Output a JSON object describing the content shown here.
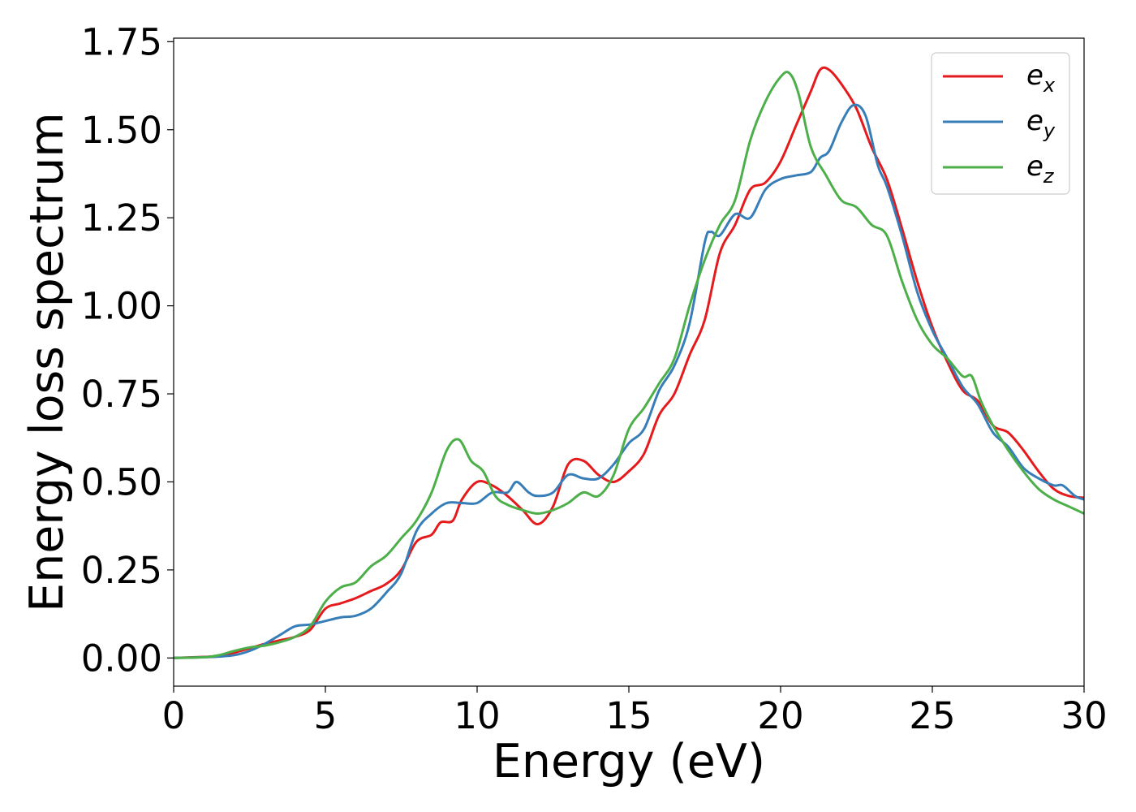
{
  "chart_data": {
    "type": "line",
    "xlabel": "Energy (eV)",
    "ylabel": "Energy loss spectrum",
    "xlim": [
      0,
      30
    ],
    "ylim": [
      -0.08,
      1.76
    ],
    "xticks": [
      0,
      5,
      10,
      15,
      20,
      25,
      30
    ],
    "xtick_labels": [
      "0",
      "5",
      "10",
      "15",
      "20",
      "25",
      "30"
    ],
    "yticks": [
      0.0,
      0.25,
      0.5,
      0.75,
      1.0,
      1.25,
      1.5,
      1.75
    ],
    "ytick_labels": [
      "0.00",
      "0.25",
      "0.50",
      "0.75",
      "1.00",
      "1.25",
      "1.50",
      "1.75"
    ],
    "grid": false,
    "legend_position": "top-right",
    "series": [
      {
        "name": "e_x",
        "label_base": "e",
        "label_sub": "x",
        "color": "#e41a1c",
        "points": [
          [
            0,
            0
          ],
          [
            1,
            0.003
          ],
          [
            1.5,
            0.006
          ],
          [
            2,
            0.015
          ],
          [
            3,
            0.04
          ],
          [
            3.5,
            0.05
          ],
          [
            4,
            0.06
          ],
          [
            4.5,
            0.08
          ],
          [
            5,
            0.14
          ],
          [
            5.5,
            0.155
          ],
          [
            6,
            0.17
          ],
          [
            6.5,
            0.19
          ],
          [
            7,
            0.21
          ],
          [
            7.5,
            0.25
          ],
          [
            8,
            0.33
          ],
          [
            8.5,
            0.35
          ],
          [
            8.8,
            0.385
          ],
          [
            9.2,
            0.39
          ],
          [
            9.5,
            0.45
          ],
          [
            10,
            0.5
          ],
          [
            10.5,
            0.49
          ],
          [
            11,
            0.46
          ],
          [
            11.5,
            0.42
          ],
          [
            12,
            0.38
          ],
          [
            12.5,
            0.43
          ],
          [
            13,
            0.55
          ],
          [
            13.5,
            0.56
          ],
          [
            14,
            0.52
          ],
          [
            14.5,
            0.5
          ],
          [
            15,
            0.53
          ],
          [
            15.5,
            0.58
          ],
          [
            16,
            0.69
          ],
          [
            16.5,
            0.75
          ],
          [
            17,
            0.86
          ],
          [
            17.5,
            0.96
          ],
          [
            18,
            1.15
          ],
          [
            18.5,
            1.23
          ],
          [
            19,
            1.33
          ],
          [
            19.5,
            1.35
          ],
          [
            20,
            1.41
          ],
          [
            20.5,
            1.51
          ],
          [
            21,
            1.61
          ],
          [
            21.3,
            1.67
          ],
          [
            21.6,
            1.67
          ],
          [
            22,
            1.63
          ],
          [
            22.5,
            1.56
          ],
          [
            23,
            1.45
          ],
          [
            23.5,
            1.36
          ],
          [
            24,
            1.22
          ],
          [
            24.5,
            1.07
          ],
          [
            25,
            0.94
          ],
          [
            25.5,
            0.84
          ],
          [
            26,
            0.76
          ],
          [
            26.5,
            0.73
          ],
          [
            27,
            0.66
          ],
          [
            27.5,
            0.64
          ],
          [
            28,
            0.59
          ],
          [
            28.5,
            0.53
          ],
          [
            29,
            0.48
          ],
          [
            29.5,
            0.46
          ],
          [
            30,
            0.455
          ]
        ]
      },
      {
        "name": "e_y",
        "label_base": "e",
        "label_sub": "y",
        "color": "#377eb8",
        "points": [
          [
            0,
            0
          ],
          [
            1,
            0.002
          ],
          [
            1.5,
            0.004
          ],
          [
            2,
            0.008
          ],
          [
            2.5,
            0.02
          ],
          [
            3,
            0.04
          ],
          [
            3.5,
            0.065
          ],
          [
            4,
            0.09
          ],
          [
            4.5,
            0.095
          ],
          [
            5,
            0.105
          ],
          [
            5.5,
            0.115
          ],
          [
            6,
            0.12
          ],
          [
            6.5,
            0.14
          ],
          [
            7,
            0.185
          ],
          [
            7.5,
            0.24
          ],
          [
            8,
            0.36
          ],
          [
            8.5,
            0.41
          ],
          [
            9,
            0.44
          ],
          [
            9.5,
            0.44
          ],
          [
            10,
            0.44
          ],
          [
            10.5,
            0.47
          ],
          [
            11,
            0.47
          ],
          [
            11.3,
            0.5
          ],
          [
            11.7,
            0.47
          ],
          [
            12,
            0.46
          ],
          [
            12.5,
            0.47
          ],
          [
            13,
            0.52
          ],
          [
            13.5,
            0.51
          ],
          [
            14,
            0.51
          ],
          [
            14.5,
            0.55
          ],
          [
            15,
            0.61
          ],
          [
            15.5,
            0.65
          ],
          [
            16,
            0.76
          ],
          [
            16.5,
            0.83
          ],
          [
            17,
            0.95
          ],
          [
            17.5,
            1.18
          ],
          [
            17.7,
            1.21
          ],
          [
            18,
            1.2
          ],
          [
            18.5,
            1.26
          ],
          [
            19,
            1.25
          ],
          [
            19.5,
            1.33
          ],
          [
            20,
            1.36
          ],
          [
            20.5,
            1.37
          ],
          [
            21,
            1.38
          ],
          [
            21.3,
            1.42
          ],
          [
            21.6,
            1.44
          ],
          [
            22,
            1.52
          ],
          [
            22.4,
            1.57
          ],
          [
            22.8,
            1.54
          ],
          [
            23.2,
            1.4
          ],
          [
            23.5,
            1.34
          ],
          [
            24,
            1.2
          ],
          [
            24.5,
            1.04
          ],
          [
            25,
            0.93
          ],
          [
            25.5,
            0.85
          ],
          [
            26,
            0.77
          ],
          [
            26.5,
            0.72
          ],
          [
            27,
            0.64
          ],
          [
            27.5,
            0.6
          ],
          [
            28,
            0.54
          ],
          [
            28.5,
            0.51
          ],
          [
            29,
            0.49
          ],
          [
            29.3,
            0.49
          ],
          [
            29.7,
            0.46
          ],
          [
            30,
            0.45
          ]
        ]
      },
      {
        "name": "e_z",
        "label_base": "e",
        "label_sub": "z",
        "color": "#4daf4a",
        "points": [
          [
            0,
            0
          ],
          [
            1,
            0.002
          ],
          [
            1.5,
            0.008
          ],
          [
            2,
            0.02
          ],
          [
            2.5,
            0.03
          ],
          [
            3,
            0.035
          ],
          [
            3.5,
            0.045
          ],
          [
            4,
            0.06
          ],
          [
            4.5,
            0.09
          ],
          [
            5,
            0.16
          ],
          [
            5.5,
            0.2
          ],
          [
            6,
            0.215
          ],
          [
            6.5,
            0.26
          ],
          [
            7,
            0.29
          ],
          [
            7.5,
            0.34
          ],
          [
            8,
            0.39
          ],
          [
            8.5,
            0.47
          ],
          [
            9,
            0.59
          ],
          [
            9.4,
            0.62
          ],
          [
            9.8,
            0.56
          ],
          [
            10.2,
            0.53
          ],
          [
            10.6,
            0.46
          ],
          [
            11,
            0.435
          ],
          [
            11.5,
            0.42
          ],
          [
            12,
            0.41
          ],
          [
            12.5,
            0.42
          ],
          [
            13,
            0.44
          ],
          [
            13.5,
            0.47
          ],
          [
            14,
            0.46
          ],
          [
            14.5,
            0.52
          ],
          [
            15,
            0.65
          ],
          [
            15.5,
            0.71
          ],
          [
            16,
            0.78
          ],
          [
            16.5,
            0.85
          ],
          [
            17,
            1.0
          ],
          [
            17.5,
            1.13
          ],
          [
            18,
            1.23
          ],
          [
            18.5,
            1.3
          ],
          [
            19,
            1.47
          ],
          [
            19.5,
            1.58
          ],
          [
            20,
            1.65
          ],
          [
            20.3,
            1.66
          ],
          [
            20.6,
            1.6
          ],
          [
            21,
            1.45
          ],
          [
            21.5,
            1.37
          ],
          [
            22,
            1.3
          ],
          [
            22.5,
            1.28
          ],
          [
            23,
            1.23
          ],
          [
            23.5,
            1.2
          ],
          [
            24,
            1.07
          ],
          [
            24.5,
            0.96
          ],
          [
            25,
            0.89
          ],
          [
            25.5,
            0.85
          ],
          [
            26,
            0.8
          ],
          [
            26.3,
            0.8
          ],
          [
            26.6,
            0.73
          ],
          [
            27,
            0.66
          ],
          [
            27.5,
            0.59
          ],
          [
            28,
            0.53
          ],
          [
            28.5,
            0.48
          ],
          [
            29,
            0.45
          ],
          [
            29.5,
            0.43
          ],
          [
            30,
            0.41
          ]
        ]
      }
    ]
  }
}
